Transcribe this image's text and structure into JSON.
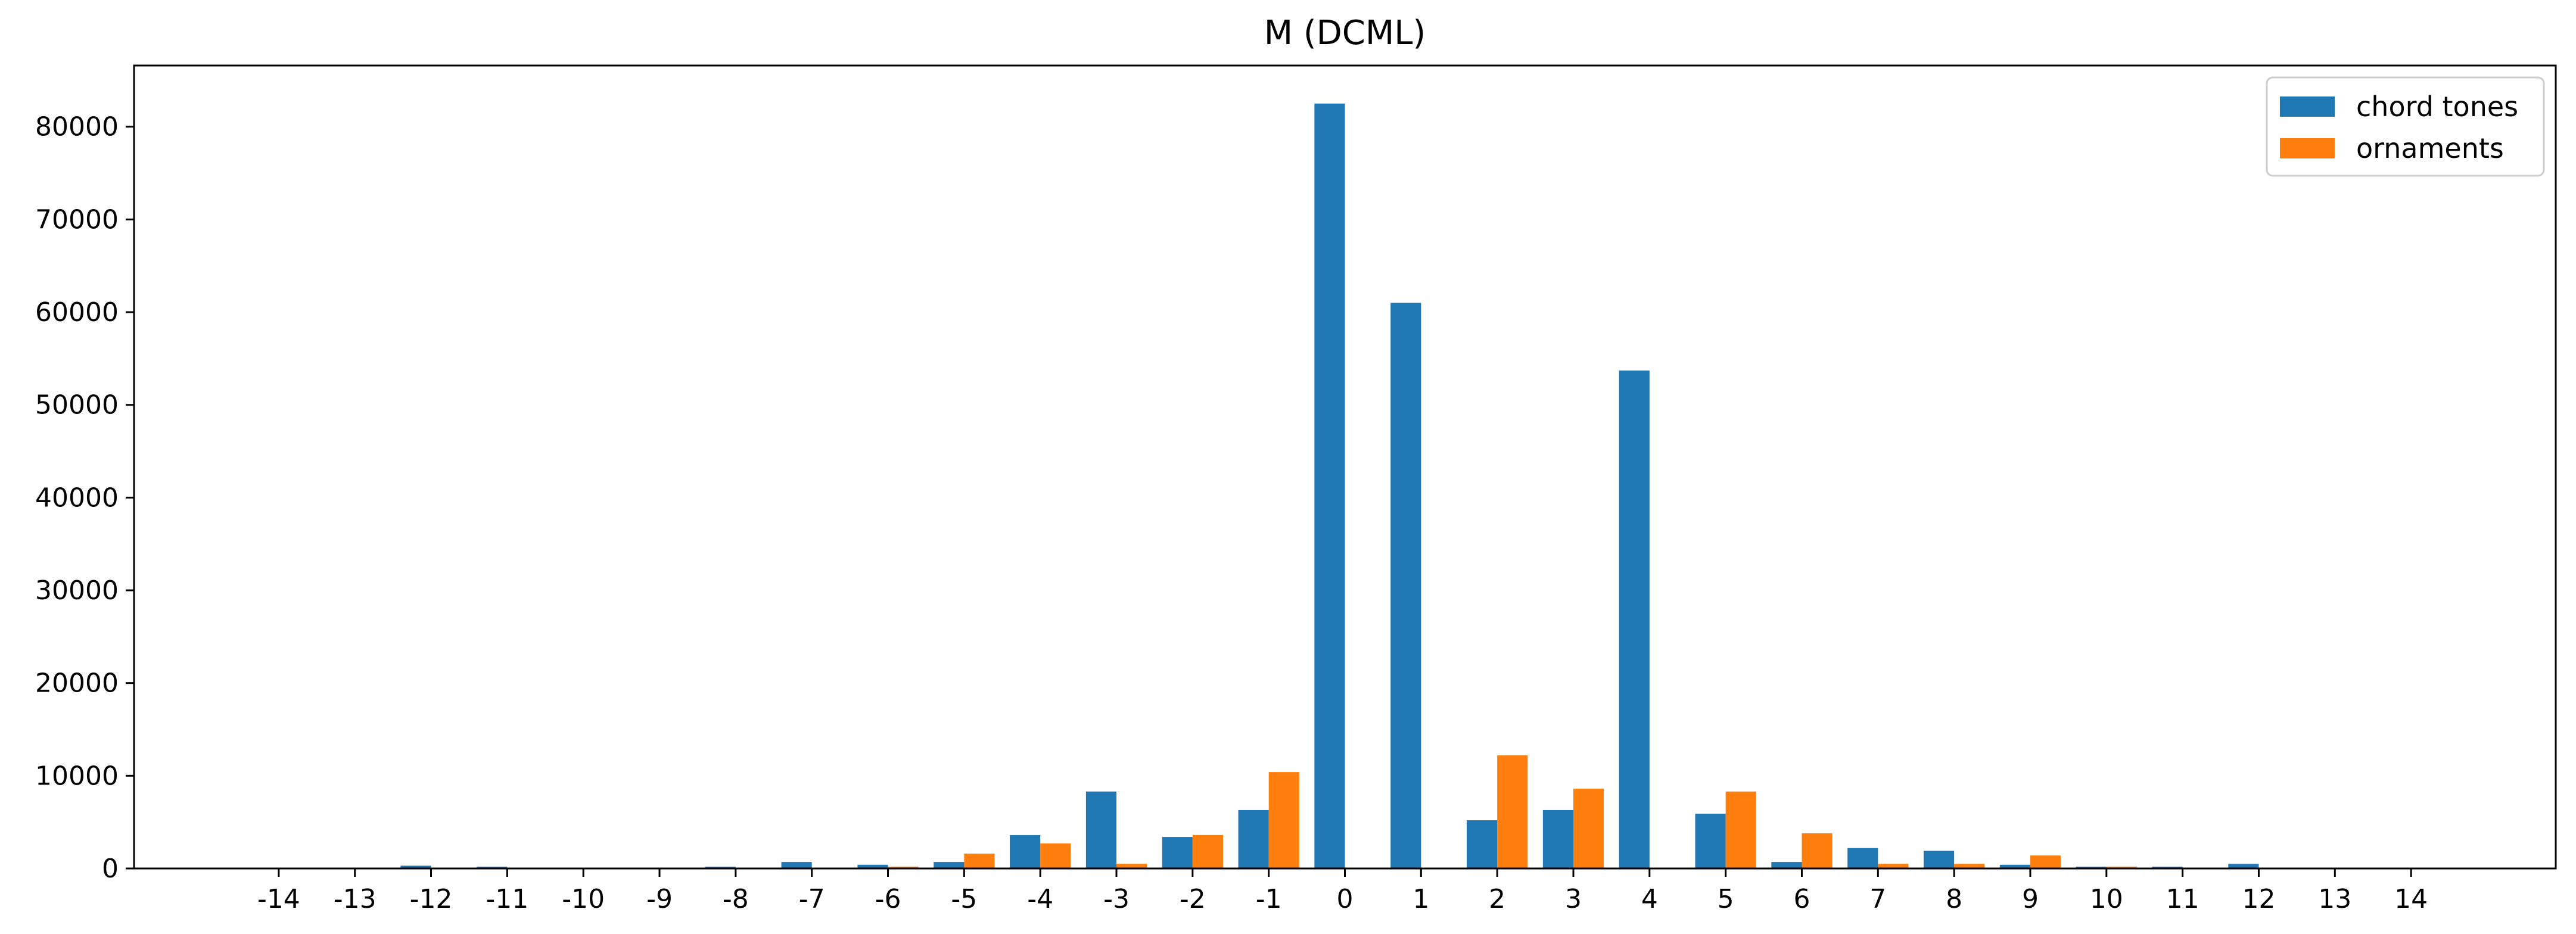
{
  "chart_data": {
    "type": "bar",
    "title": "M (DCML)",
    "xlabel": "",
    "ylabel": "",
    "categories": [
      "-14",
      "-13",
      "-12",
      "-11",
      "-10",
      "-9",
      "-8",
      "-7",
      "-6",
      "-5",
      "-4",
      "-3",
      "-2",
      "-1",
      "0",
      "1",
      "2",
      "3",
      "4",
      "5",
      "6",
      "7",
      "8",
      "9",
      "10",
      "11",
      "12",
      "13",
      "14"
    ],
    "series": [
      {
        "name": "chord tones",
        "color": "#1f77b4",
        "values": [
          0,
          0,
          300,
          200,
          0,
          0,
          200,
          700,
          400,
          700,
          3600,
          8300,
          3400,
          6300,
          82500,
          61000,
          5200,
          6300,
          53700,
          5900,
          700,
          2200,
          1900,
          400,
          200,
          200,
          500,
          0,
          0
        ]
      },
      {
        "name": "ornaments",
        "color": "#ff7f0e",
        "values": [
          0,
          0,
          0,
          0,
          0,
          0,
          0,
          0,
          200,
          1600,
          2700,
          500,
          3600,
          10400,
          0,
          0,
          12200,
          8600,
          0,
          8300,
          3800,
          500,
          500,
          1400,
          200,
          0,
          0,
          0,
          0
        ]
      }
    ],
    "yticks": [
      0,
      10000,
      20000,
      30000,
      40000,
      50000,
      60000,
      70000,
      80000
    ],
    "ylim": [
      0,
      86600
    ],
    "xlim": [
      -15.9,
      15.9
    ],
    "grid": false,
    "legend_position": "top-right"
  }
}
